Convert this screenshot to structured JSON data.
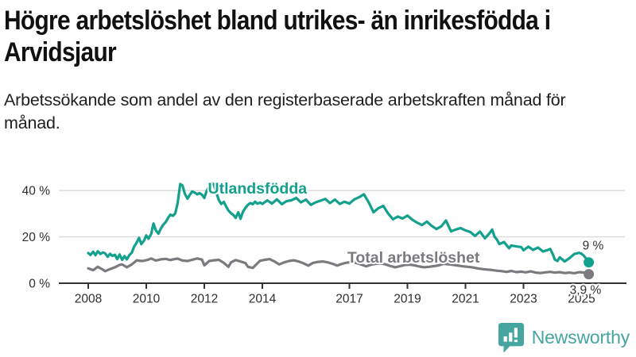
{
  "header": {
    "title_line1": "Högre arbetslöshet bland utrikes- än inrikesfödda i",
    "title_line2": "Arvidsjaur",
    "subtitle": "Arbetssökande som andel av den registerbaserade arbetskraften månad för månad."
  },
  "footer": {
    "brand": "Newsworthy",
    "brand_icon": "newsworthy-chart-bubble-icon",
    "brand_color": "#46a5a0"
  },
  "chart_data": {
    "type": "line",
    "title": "",
    "xlabel": "",
    "ylabel": "",
    "grid": "horizontal",
    "style": {
      "grid_color": "#d9d9d9",
      "axis_color": "#333333",
      "background": "#ffffff"
    },
    "x_axis": {
      "range": [
        2007.3,
        2026.5
      ],
      "ticks": [
        2008,
        2010,
        2012,
        2014,
        2017,
        2019,
        2021,
        2023,
        2025
      ],
      "tick_labels": [
        "2008",
        "2010",
        "2012",
        "2014",
        "2017",
        "2019",
        "2021",
        "2023",
        "2025"
      ]
    },
    "y_axis": {
      "unit": "%",
      "range": [
        0,
        46
      ],
      "ticks": [
        0,
        20,
        40
      ],
      "tick_labels": [
        "0 %",
        "20 %",
        "40 %"
      ],
      "gridline_values": [
        20,
        40
      ]
    },
    "series": [
      {
        "id": "utlandsfodda",
        "name": "Utlandsfödda",
        "color": "#13a08d",
        "end_label": "9 %",
        "end_value": 9,
        "label_pos": {
          "x": 2013.83,
          "y": 38.7,
          "anchor": "middle"
        },
        "points": [
          [
            2008.0,
            13
          ],
          [
            2008.08,
            12.2
          ],
          [
            2008.17,
            13.6
          ],
          [
            2008.25,
            12.1
          ],
          [
            2008.33,
            13.8
          ],
          [
            2008.42,
            12.6
          ],
          [
            2008.5,
            13.3
          ],
          [
            2008.58,
            12.9
          ],
          [
            2008.67,
            11.4
          ],
          [
            2008.75,
            12.7
          ],
          [
            2008.83,
            11.8
          ],
          [
            2008.92,
            12.3
          ],
          [
            2009.0,
            10.4
          ],
          [
            2009.08,
            12.4
          ],
          [
            2009.17,
            10.1
          ],
          [
            2009.25,
            11.7
          ],
          [
            2009.33,
            10.3
          ],
          [
            2009.42,
            12.2
          ],
          [
            2009.5,
            13.2
          ],
          [
            2009.58,
            15.8
          ],
          [
            2009.67,
            17.6
          ],
          [
            2009.75,
            19.6
          ],
          [
            2009.83,
            16.9
          ],
          [
            2009.92,
            18.4
          ],
          [
            2010.0,
            20.6
          ],
          [
            2010.08,
            19.2
          ],
          [
            2010.17,
            21.3
          ],
          [
            2010.25,
            25.8
          ],
          [
            2010.33,
            22.8
          ],
          [
            2010.42,
            21.4
          ],
          [
            2010.5,
            23.6
          ],
          [
            2010.58,
            25.2
          ],
          [
            2010.67,
            26.4
          ],
          [
            2010.75,
            28.2
          ],
          [
            2010.83,
            29.6
          ],
          [
            2010.92,
            29.1
          ],
          [
            2011.0,
            30.2
          ],
          [
            2011.08,
            34.5
          ],
          [
            2011.17,
            42.8
          ],
          [
            2011.25,
            42.2
          ],
          [
            2011.33,
            38.6
          ],
          [
            2011.42,
            36.5
          ],
          [
            2011.5,
            38.2
          ],
          [
            2011.58,
            39.6
          ],
          [
            2011.67,
            39.1
          ],
          [
            2011.75,
            38.4
          ],
          [
            2011.83,
            38.9
          ],
          [
            2011.92,
            38.2
          ],
          [
            2012.0,
            36.8
          ],
          [
            2012.08,
            39.8
          ],
          [
            2012.17,
            41.9
          ],
          [
            2012.25,
            43.4
          ],
          [
            2012.33,
            42.6
          ],
          [
            2012.42,
            38.8
          ],
          [
            2012.5,
            35.9
          ],
          [
            2012.58,
            34.2
          ],
          [
            2012.67,
            35.1
          ],
          [
            2012.75,
            33.2
          ],
          [
            2012.83,
            31.4
          ],
          [
            2012.92,
            30.2
          ],
          [
            2013.0,
            29.5
          ],
          [
            2013.08,
            28.2
          ],
          [
            2013.17,
            30.6
          ],
          [
            2013.25,
            27.8
          ],
          [
            2013.33,
            30.8
          ],
          [
            2013.42,
            32.6
          ],
          [
            2013.5,
            33.8
          ],
          [
            2013.58,
            34.6
          ],
          [
            2013.67,
            34.1
          ],
          [
            2013.75,
            35.2
          ],
          [
            2013.83,
            34.3
          ],
          [
            2013.92,
            34.8
          ],
          [
            2014.0,
            34.2
          ],
          [
            2014.17,
            35.8
          ],
          [
            2014.33,
            34.4
          ],
          [
            2014.5,
            36.2
          ],
          [
            2014.67,
            34.1
          ],
          [
            2014.83,
            35.4
          ],
          [
            2015.0,
            35.8
          ],
          [
            2015.17,
            36.8
          ],
          [
            2015.33,
            34.9
          ],
          [
            2015.5,
            36.1
          ],
          [
            2015.67,
            33.8
          ],
          [
            2015.83,
            34.9
          ],
          [
            2016.0,
            35.6
          ],
          [
            2016.17,
            36.4
          ],
          [
            2016.33,
            34.6
          ],
          [
            2016.5,
            36.1
          ],
          [
            2016.67,
            34.2
          ],
          [
            2016.83,
            35.2
          ],
          [
            2017.0,
            34.4
          ],
          [
            2017.17,
            36.2
          ],
          [
            2017.33,
            37.1
          ],
          [
            2017.5,
            38.4
          ],
          [
            2017.67,
            34.8
          ],
          [
            2017.83,
            30.6
          ],
          [
            2018.0,
            32.4
          ],
          [
            2018.17,
            33.4
          ],
          [
            2018.33,
            30.2
          ],
          [
            2018.5,
            27.6
          ],
          [
            2018.67,
            28.8
          ],
          [
            2018.83,
            27.9
          ],
          [
            2019.0,
            29.2
          ],
          [
            2019.17,
            27.4
          ],
          [
            2019.33,
            26.2
          ],
          [
            2019.5,
            25.1
          ],
          [
            2019.67,
            26.6
          ],
          [
            2019.83,
            24.8
          ],
          [
            2020.0,
            23.4
          ],
          [
            2020.17,
            24.6
          ],
          [
            2020.33,
            27.1
          ],
          [
            2020.5,
            22.4
          ],
          [
            2020.67,
            23.2
          ],
          [
            2020.83,
            23.8
          ],
          [
            2021.0,
            22.8
          ],
          [
            2021.17,
            22.1
          ],
          [
            2021.33,
            20.4
          ],
          [
            2021.5,
            22.3
          ],
          [
            2021.67,
            19.4
          ],
          [
            2021.83,
            21.6
          ],
          [
            2021.92,
            23.2
          ],
          [
            2022.0,
            20.1
          ],
          [
            2022.08,
            18.9
          ],
          [
            2022.17,
            16.9
          ],
          [
            2022.33,
            17.8
          ],
          [
            2022.5,
            15.1
          ],
          [
            2022.58,
            16.3
          ],
          [
            2022.75,
            15.9
          ],
          [
            2022.92,
            15.6
          ],
          [
            2023.0,
            14.2
          ],
          [
            2023.17,
            15.8
          ],
          [
            2023.33,
            14.4
          ],
          [
            2023.5,
            15.4
          ],
          [
            2023.67,
            13.7
          ],
          [
            2023.83,
            14.3
          ],
          [
            2023.92,
            14.8
          ],
          [
            2024.0,
            12.8
          ],
          [
            2024.08,
            10.2
          ],
          [
            2024.17,
            9.6
          ],
          [
            2024.25,
            11.2
          ],
          [
            2024.42,
            9.4
          ],
          [
            2024.58,
            10.8
          ],
          [
            2024.75,
            12.6
          ],
          [
            2024.92,
            13.1
          ],
          [
            2025.0,
            12.7
          ],
          [
            2025.08,
            11.9
          ],
          [
            2025.17,
            10.4
          ],
          [
            2025.25,
            9
          ]
        ]
      },
      {
        "id": "total-arbetsloshet",
        "name": "Total arbetslöshet",
        "color": "#7b7b7f",
        "end_label": "3,9 %",
        "end_value": 3.9,
        "label_pos": {
          "x": 2016.93,
          "y": 8.9,
          "anchor": "start"
        },
        "points": [
          [
            2008.0,
            6.4
          ],
          [
            2008.17,
            5.6
          ],
          [
            2008.33,
            7.1
          ],
          [
            2008.5,
            5.9
          ],
          [
            2008.58,
            5.2
          ],
          [
            2008.75,
            6.1
          ],
          [
            2008.92,
            6.9
          ],
          [
            2009.08,
            7.9
          ],
          [
            2009.17,
            8.1
          ],
          [
            2009.33,
            6.9
          ],
          [
            2009.5,
            8.1
          ],
          [
            2009.67,
            9.9
          ],
          [
            2009.83,
            9.6
          ],
          [
            2009.92,
            9.7
          ],
          [
            2010.08,
            10.2
          ],
          [
            2010.17,
            10.7
          ],
          [
            2010.33,
            9.8
          ],
          [
            2010.5,
            10.3
          ],
          [
            2010.67,
            10.5
          ],
          [
            2010.83,
            10.0
          ],
          [
            2010.92,
            10.3
          ],
          [
            2011.08,
            10.6
          ],
          [
            2011.25,
            9.8
          ],
          [
            2011.42,
            9.6
          ],
          [
            2011.58,
            10.1
          ],
          [
            2011.75,
            10.7
          ],
          [
            2011.92,
            10.2
          ],
          [
            2012.0,
            7.7
          ],
          [
            2012.17,
            9.6
          ],
          [
            2012.33,
            9.9
          ],
          [
            2012.5,
            10.1
          ],
          [
            2012.67,
            8.8
          ],
          [
            2012.83,
            7.1
          ],
          [
            2012.92,
            9.0
          ],
          [
            2013.08,
            10.0
          ],
          [
            2013.25,
            9.4
          ],
          [
            2013.42,
            8.7
          ],
          [
            2013.5,
            7.1
          ],
          [
            2013.67,
            6.6
          ],
          [
            2013.83,
            8.6
          ],
          [
            2013.92,
            9.7
          ],
          [
            2014.08,
            10.1
          ],
          [
            2014.25,
            10.4
          ],
          [
            2014.42,
            9.4
          ],
          [
            2014.58,
            8.1
          ],
          [
            2014.75,
            9.0
          ],
          [
            2014.92,
            9.6
          ],
          [
            2015.08,
            9.9
          ],
          [
            2015.25,
            9.4
          ],
          [
            2015.42,
            8.6
          ],
          [
            2015.58,
            7.6
          ],
          [
            2015.75,
            8.8
          ],
          [
            2015.92,
            9.2
          ],
          [
            2016.08,
            9.4
          ],
          [
            2016.25,
            9.0
          ],
          [
            2016.42,
            8.4
          ],
          [
            2016.58,
            7.6
          ],
          [
            2016.75,
            8.4
          ],
          [
            2016.92,
            8.9
          ],
          [
            2017.08,
            9.1
          ],
          [
            2017.25,
            8.7
          ],
          [
            2017.42,
            8.0
          ],
          [
            2017.58,
            7.3
          ],
          [
            2017.75,
            8.0
          ],
          [
            2017.92,
            8.4
          ],
          [
            2018.08,
            8.6
          ],
          [
            2018.25,
            8.1
          ],
          [
            2018.42,
            7.4
          ],
          [
            2018.58,
            6.9
          ],
          [
            2018.75,
            7.4
          ],
          [
            2018.92,
            7.9
          ],
          [
            2019.08,
            8.0
          ],
          [
            2019.25,
            7.7
          ],
          [
            2019.42,
            7.2
          ],
          [
            2019.58,
            6.9
          ],
          [
            2019.75,
            7.1
          ],
          [
            2019.92,
            7.4
          ],
          [
            2020.08,
            7.7
          ],
          [
            2020.25,
            8.4
          ],
          [
            2020.42,
            8.2
          ],
          [
            2020.58,
            7.9
          ],
          [
            2020.75,
            7.6
          ],
          [
            2020.92,
            7.3
          ],
          [
            2021.08,
            7.1
          ],
          [
            2021.25,
            6.8
          ],
          [
            2021.42,
            6.4
          ],
          [
            2021.58,
            6.1
          ],
          [
            2021.75,
            5.9
          ],
          [
            2021.92,
            5.7
          ],
          [
            2022.08,
            5.4
          ],
          [
            2022.25,
            5.2
          ],
          [
            2022.42,
            4.9
          ],
          [
            2022.58,
            5.3
          ],
          [
            2022.75,
            4.8
          ],
          [
            2022.92,
            5.0
          ],
          [
            2023.08,
            4.7
          ],
          [
            2023.25,
            5.1
          ],
          [
            2023.42,
            4.6
          ],
          [
            2023.58,
            4.4
          ],
          [
            2023.75,
            4.7
          ],
          [
            2023.92,
            4.9
          ],
          [
            2024.08,
            4.6
          ],
          [
            2024.25,
            4.8
          ],
          [
            2024.42,
            4.4
          ],
          [
            2024.58,
            4.6
          ],
          [
            2024.75,
            4.3
          ],
          [
            2024.92,
            4.8
          ],
          [
            2025.08,
            4.6
          ],
          [
            2025.25,
            3.9
          ]
        ]
      }
    ]
  }
}
